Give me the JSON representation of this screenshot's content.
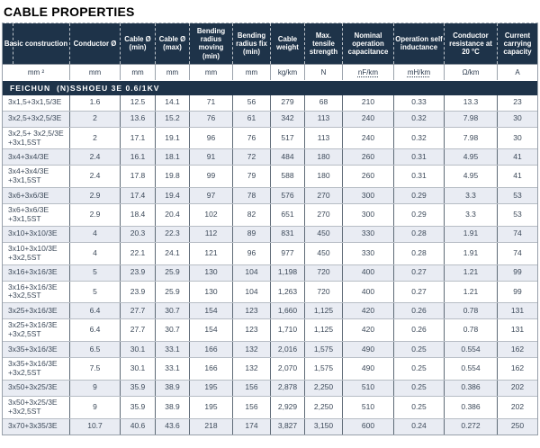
{
  "page_title": "CABLE PROPERTIES",
  "colors": {
    "header_navy": "#1e3349",
    "stripe": "#e9ecf3",
    "data_text": "#3d4a5a",
    "unit_text": "#2c3b4e",
    "vertical_border": "#5f6b77",
    "horizontal_border": "#b7bdc5"
  },
  "table": {
    "section_header": "FEICHUN  (N)SSHOEU 3E 0.6/1KV",
    "columns": [
      {
        "label": "Basic construction",
        "unit": "mm ²",
        "dotted": false
      },
      {
        "label": "Conductor Ø",
        "unit": "mm",
        "dotted": false
      },
      {
        "label": "Cable Ø (min)",
        "unit": "mm",
        "dotted": false
      },
      {
        "label": "Cable Ø (max)",
        "unit": "mm",
        "dotted": false
      },
      {
        "label": "Bending radius moving (min)",
        "unit": "mm",
        "dotted": false
      },
      {
        "label": "Bending radius fix (min)",
        "unit": "mm",
        "dotted": false
      },
      {
        "label": "Cable weight",
        "unit": "kg/km",
        "dotted": false
      },
      {
        "label": "Max. tensile strength",
        "unit": "N",
        "dotted": false
      },
      {
        "label": "Nominal operation capacitance",
        "unit": "nF/km",
        "dotted": true
      },
      {
        "label": "Operation self inductance",
        "unit": "mH/km",
        "dotted": true
      },
      {
        "label": "Conductor resistance at 20 °C",
        "unit": "Ω/km",
        "dotted": false
      },
      {
        "label": "Current carrying capacity",
        "unit": "A",
        "dotted": false
      }
    ],
    "rows": [
      {
        "cells": [
          "3x1,5+3x1,5/3E",
          "1.6",
          "12.5",
          "14.1",
          "71",
          "56",
          "279",
          "68",
          "210",
          "0.33",
          "13.3",
          "23"
        ]
      },
      {
        "cells": [
          "3x2,5+3x2,5/3E",
          "2",
          "13.6",
          "15.2",
          "76",
          "61",
          "342",
          "113",
          "240",
          "0.32",
          "7.98",
          "30"
        ]
      },
      {
        "cells": [
          "3x2,5+ 3x2,5/3E\n+3x1,5ST",
          "2",
          "17.1",
          "19.1",
          "96",
          "76",
          "517",
          "113",
          "240",
          "0.32",
          "7.98",
          "30"
        ]
      },
      {
        "cells": [
          "3x4+3x4/3E",
          "2.4",
          "16.1",
          "18.1",
          "91",
          "72",
          "484",
          "180",
          "260",
          "0.31",
          "4.95",
          "41"
        ]
      },
      {
        "cells": [
          "3x4+3x4/3E\n+3x1,5ST",
          "2.4",
          "17.8",
          "19.8",
          "99",
          "79",
          "588",
          "180",
          "260",
          "0.31",
          "4.95",
          "41"
        ]
      },
      {
        "cells": [
          "3x6+3x6/3E",
          "2.9",
          "17.4",
          "19.4",
          "97",
          "78",
          "576",
          "270",
          "300",
          "0.29",
          "3.3",
          "53"
        ]
      },
      {
        "cells": [
          "3x6+3x6/3E\n+3x1,5ST",
          "2.9",
          "18.4",
          "20.4",
          "102",
          "82",
          "651",
          "270",
          "300",
          "0.29",
          "3.3",
          "53"
        ]
      },
      {
        "cells": [
          "3x10+3x10/3E",
          "4",
          "20.3",
          "22.3",
          "112",
          "89",
          "831",
          "450",
          "330",
          "0.28",
          "1.91",
          "74"
        ]
      },
      {
        "cells": [
          "3x10+3x10/3E\n+3x2,5ST",
          "4",
          "22.1",
          "24.1",
          "121",
          "96",
          "977",
          "450",
          "330",
          "0.28",
          "1.91",
          "74"
        ]
      },
      {
        "cells": [
          "3x16+3x16/3E",
          "5",
          "23.9",
          "25.9",
          "130",
          "104",
          "1,198",
          "720",
          "400",
          "0.27",
          "1.21",
          "99"
        ]
      },
      {
        "cells": [
          "3x16+3x16/3E\n+3x2,5ST",
          "5",
          "23.9",
          "25.9",
          "130",
          "104",
          "1,263",
          "720",
          "400",
          "0.27",
          "1.21",
          "99"
        ]
      },
      {
        "cells": [
          "3x25+3x16/3E",
          "6.4",
          "27.7",
          "30.7",
          "154",
          "123",
          "1,660",
          "1,125",
          "420",
          "0.26",
          "0.78",
          "131"
        ]
      },
      {
        "cells": [
          "3x25+3x16/3E\n+3x2,5ST",
          "6.4",
          "27.7",
          "30.7",
          "154",
          "123",
          "1,710",
          "1,125",
          "420",
          "0.26",
          "0.78",
          "131"
        ]
      },
      {
        "cells": [
          "3x35+3x16/3E",
          "6.5",
          "30.1",
          "33.1",
          "166",
          "132",
          "2,016",
          "1,575",
          "490",
          "0.25",
          "0.554",
          "162"
        ]
      },
      {
        "cells": [
          "3x35+3x16/3E\n+3x2,5ST",
          "7.5",
          "30.1",
          "33.1",
          "166",
          "132",
          "2,070",
          "1,575",
          "490",
          "0.25",
          "0.554",
          "162"
        ]
      },
      {
        "cells": [
          "3x50+3x25/3E",
          "9",
          "35.9",
          "38.9",
          "195",
          "156",
          "2,878",
          "2,250",
          "510",
          "0.25",
          "0.386",
          "202"
        ]
      },
      {
        "cells": [
          "3x50+3x25/3E\n+3x2,5ST",
          "9",
          "35.9",
          "38.9",
          "195",
          "156",
          "2,929",
          "2,250",
          "510",
          "0.25",
          "0.386",
          "202"
        ]
      },
      {
        "cells": [
          "3x70+3x35/3E",
          "10.7",
          "40.6",
          "43.6",
          "218",
          "174",
          "3,827",
          "3,150",
          "600",
          "0.24",
          "0.272",
          "250"
        ]
      }
    ]
  }
}
